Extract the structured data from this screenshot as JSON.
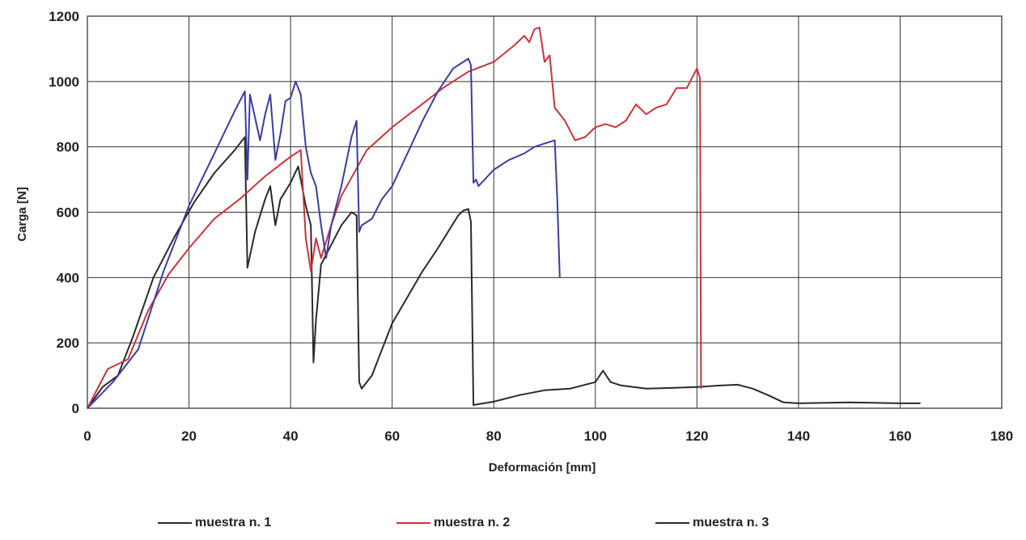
{
  "chart_data": {
    "type": "line",
    "xlabel": "Deformación [mm]",
    "ylabel": "Carga [N]",
    "xlim": [
      0,
      180
    ],
    "ylim": [
      0,
      1200
    ],
    "xticks": [
      0,
      20,
      40,
      60,
      80,
      100,
      120,
      140,
      160,
      180
    ],
    "yticks": [
      0,
      200,
      400,
      600,
      800,
      1000,
      1200
    ],
    "grid": true,
    "legend_position": "bottom",
    "series": [
      {
        "name": "muestra n. 1",
        "color": "#2a2a2a",
        "x": [
          0,
          3,
          6,
          9,
          13,
          17,
          21,
          25,
          29,
          31,
          31.5,
          33,
          35,
          36,
          37,
          38,
          40,
          41.5,
          43,
          44,
          44.5,
          45,
          46,
          48,
          50,
          52,
          53,
          53.5,
          54,
          56,
          58,
          60,
          63,
          66,
          69,
          71,
          73,
          74,
          75,
          75.5,
          76,
          80,
          85,
          90,
          95,
          100,
          101.5,
          103,
          105,
          110,
          115,
          120,
          125,
          128,
          131,
          134,
          137,
          140,
          150,
          160,
          164
        ],
        "y": [
          0,
          65,
          100,
          220,
          400,
          520,
          630,
          720,
          790,
          830,
          430,
          540,
          640,
          680,
          560,
          640,
          690,
          740,
          620,
          560,
          140,
          270,
          440,
          500,
          560,
          600,
          590,
          80,
          60,
          100,
          180,
          260,
          340,
          420,
          490,
          540,
          590,
          605,
          610,
          570,
          10,
          20,
          40,
          55,
          60,
          80,
          115,
          80,
          70,
          60,
          62,
          65,
          70,
          72,
          60,
          40,
          18,
          15,
          18,
          15,
          15
        ]
      },
      {
        "name": "muestra n. 2",
        "color": "#c8343c",
        "x": [
          0,
          4,
          8,
          12,
          16,
          20,
          25,
          30,
          35,
          40,
          42,
          43,
          44,
          45,
          46,
          48,
          50,
          55,
          60,
          65,
          70,
          75,
          80,
          84,
          86,
          87,
          88,
          89,
          90,
          91,
          92,
          94,
          96,
          98,
          100,
          102,
          104,
          106,
          108,
          110,
          112,
          114,
          116,
          118,
          120,
          120.6,
          120.8
        ],
        "y": [
          0,
          120,
          150,
          300,
          410,
          490,
          580,
          640,
          710,
          770,
          790,
          520,
          420,
          520,
          460,
          560,
          650,
          790,
          860,
          920,
          980,
          1030,
          1060,
          1110,
          1140,
          1120,
          1160,
          1165,
          1060,
          1080,
          920,
          880,
          820,
          830,
          860,
          870,
          860,
          880,
          930,
          900,
          920,
          930,
          980,
          980,
          1040,
          1010,
          60
        ]
      },
      {
        "name": "muestra n. 3",
        "color": "#3b3d9e",
        "x": [
          0,
          5,
          10,
          15,
          20,
          25,
          29,
          31,
          31.5,
          32,
          34,
          35,
          36,
          37,
          38,
          39,
          40,
          41,
          42,
          43,
          44,
          45,
          46,
          47,
          48,
          50,
          52,
          53,
          53.5,
          54,
          56,
          58,
          60,
          63,
          66,
          69,
          72,
          74,
          75,
          75.5,
          76,
          76.5,
          77,
          80,
          83,
          86,
          88,
          90,
          92,
          92.5,
          93
        ],
        "y": [
          0,
          80,
          180,
          420,
          620,
          780,
          910,
          970,
          700,
          960,
          820,
          900,
          960,
          760,
          840,
          940,
          950,
          1000,
          960,
          800,
          720,
          680,
          560,
          460,
          560,
          680,
          830,
          880,
          540,
          560,
          580,
          640,
          680,
          780,
          880,
          970,
          1040,
          1060,
          1070,
          1050,
          690,
          700,
          680,
          730,
          760,
          780,
          800,
          810,
          820,
          640,
          400
        ]
      }
    ]
  }
}
